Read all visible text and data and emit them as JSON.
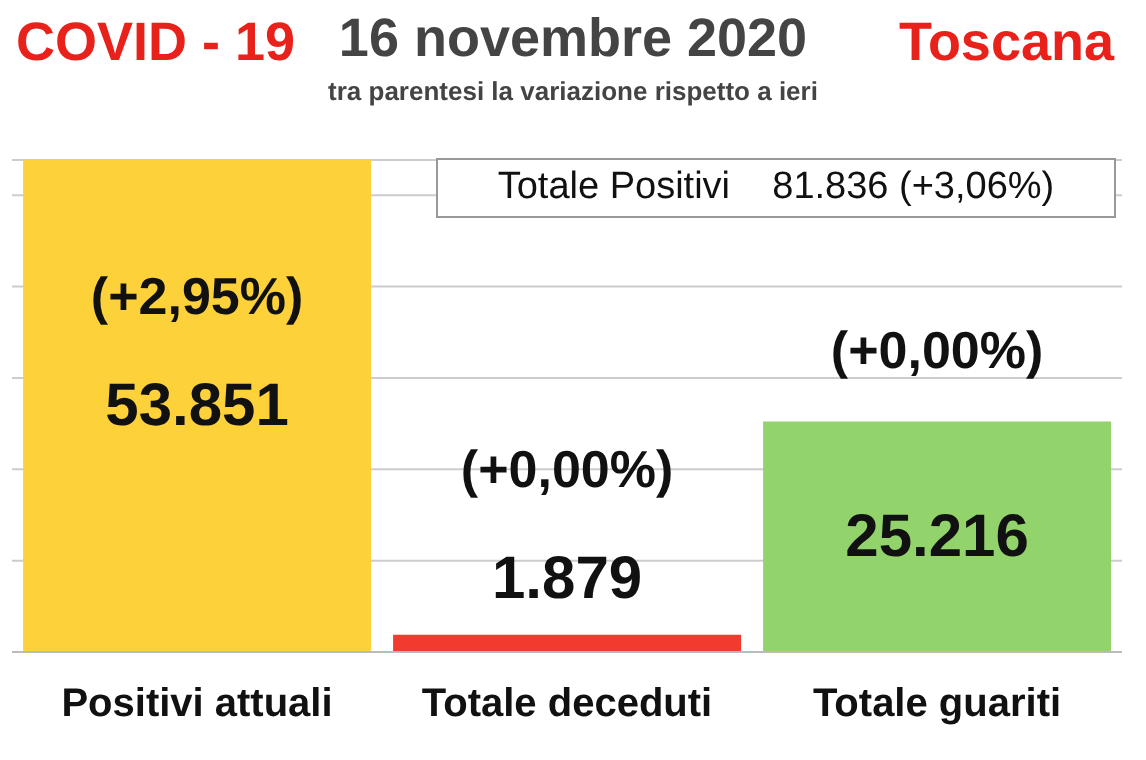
{
  "chart_data": {
    "type": "bar",
    "title": "16 novembre 2020",
    "subtitle": "tra parentesi la variazione rispetto a ieri",
    "categories": [
      "Positivi attuali",
      "Totale deceduti",
      "Totale guariti"
    ],
    "values": [
      53851,
      1879,
      25216
    ],
    "colors": [
      "#fdd13a",
      "#f23a2f",
      "#93d36c"
    ],
    "value_labels": [
      "53.851",
      "1.879",
      "25.216"
    ],
    "ylim": [
      0,
      53851
    ],
    "yticks": [
      {
        "value": 0,
        "label": null
      },
      {
        "value": 10000,
        "label": null
      },
      {
        "value": 20000,
        "label": null
      },
      {
        "value": 30000,
        "label": null
      },
      {
        "value": 40000,
        "label": null
      },
      {
        "value": 50000,
        "label": null
      }
    ],
    "tick_labels": "x",
    "grid": "y",
    "legend": false,
    "annotations": [
      "COVID - 19",
      "Toscana",
      "Totale Positivi    81.836 (+3,06%)",
      "(+2,95%)",
      "(+0,00%)",
      "(+0,00%)"
    ]
  }
}
